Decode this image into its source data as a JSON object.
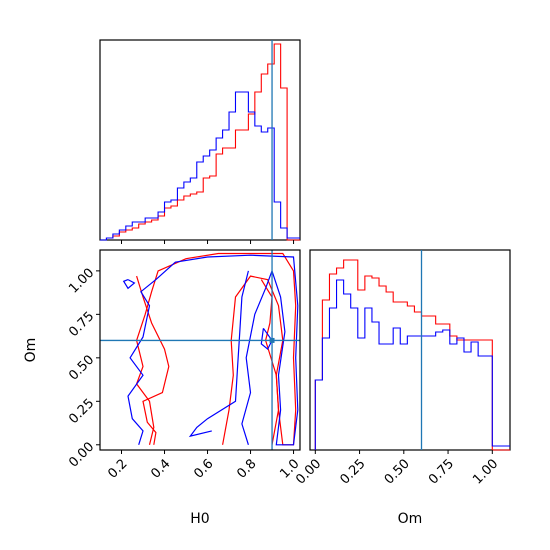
{
  "chart_data": {
    "type": "corner",
    "parameters": [
      "H0",
      "Om"
    ],
    "truths": {
      "H0": 0.9,
      "Om": 0.6
    },
    "colors": {
      "series_a": "#ff0000",
      "series_b": "#0000ff",
      "truth": "#1f77b4"
    },
    "panels": [
      {
        "id": "h0-histogram",
        "type": "histogram",
        "xlim": [
          0.1,
          1.03
        ],
        "ylim": [
          0,
          1.0
        ],
        "x_ticks": [
          0.2,
          0.4,
          0.6,
          0.8,
          1.0
        ],
        "bins": [
          0.1,
          0.13,
          0.16,
          0.19,
          0.22,
          0.25,
          0.28,
          0.31,
          0.34,
          0.37,
          0.4,
          0.43,
          0.46,
          0.49,
          0.52,
          0.55,
          0.58,
          0.61,
          0.64,
          0.67,
          0.7,
          0.73,
          0.76,
          0.79,
          0.82,
          0.85,
          0.88,
          0.91,
          0.94,
          0.97,
          1.0,
          1.03
        ],
        "series": [
          {
            "color": "red",
            "values": [
              0.0,
              0.01,
              0.02,
              0.04,
              0.05,
              0.06,
              0.08,
              0.09,
              0.1,
              0.12,
              0.16,
              0.17,
              0.2,
              0.22,
              0.23,
              0.24,
              0.31,
              0.32,
              0.43,
              0.46,
              0.46,
              0.55,
              0.55,
              0.63,
              0.74,
              0.83,
              0.88,
              0.98,
              0.76,
              0.0,
              0.0
            ]
          },
          {
            "color": "blue",
            "values": [
              0.0,
              0.01,
              0.03,
              0.05,
              0.07,
              0.09,
              0.09,
              0.11,
              0.11,
              0.14,
              0.19,
              0.2,
              0.26,
              0.29,
              0.31,
              0.39,
              0.42,
              0.45,
              0.51,
              0.55,
              0.64,
              0.74,
              0.74,
              0.64,
              0.57,
              0.54,
              0.56,
              0.19,
              0.06,
              0.01,
              0.01
            ]
          }
        ]
      },
      {
        "id": "om-histogram",
        "type": "histogram",
        "xlim": [
          -0.03,
          1.1
        ],
        "ylim": [
          0,
          1.0
        ],
        "x_ticks": [
          0.0,
          0.25,
          0.5,
          0.75,
          1.0
        ],
        "x_tick_labels": [
          "0.00",
          "0.25",
          "0.50",
          "0.75",
          "1.00"
        ],
        "xlabel": "Om",
        "bins": [
          0.0,
          0.04,
          0.08,
          0.12,
          0.16,
          0.2,
          0.24,
          0.28,
          0.32,
          0.36,
          0.4,
          0.44,
          0.48,
          0.52,
          0.56,
          0.6,
          0.64,
          0.68,
          0.72,
          0.76,
          0.8,
          0.84,
          0.88,
          0.92,
          0.96,
          1.0,
          1.04,
          1.1
        ],
        "series": [
          {
            "color": "red",
            "values": [
              0.35,
              0.75,
              0.88,
              0.91,
              0.95,
              0.95,
              0.8,
              0.87,
              0.86,
              0.82,
              0.79,
              0.74,
              0.74,
              0.72,
              0.69,
              0.67,
              0.67,
              0.63,
              0.63,
              0.57,
              0.55,
              0.55,
              0.55,
              0.55,
              0.55,
              0.0,
              0.0
            ]
          },
          {
            "color": "blue",
            "values": [
              0.35,
              0.56,
              0.71,
              0.85,
              0.78,
              0.71,
              0.56,
              0.71,
              0.64,
              0.53,
              0.53,
              0.61,
              0.53,
              0.57,
              0.57,
              0.57,
              0.57,
              0.59,
              0.6,
              0.53,
              0.56,
              0.49,
              0.54,
              0.47,
              0.47,
              0.02,
              0.02
            ]
          }
        ]
      },
      {
        "id": "h0-om-contour",
        "type": "contour",
        "xlim": [
          0.1,
          1.03
        ],
        "ylim": [
          -0.03,
          1.12
        ],
        "x_ticks": [
          0.2,
          0.4,
          0.6,
          0.8,
          1.0
        ],
        "x_tick_labels": [
          "0.2",
          "0.4",
          "0.6",
          "0.8",
          "1.0"
        ],
        "y_ticks": [
          0.0,
          0.25,
          0.5,
          0.75,
          1.0
        ],
        "y_tick_labels": [
          "0.00",
          "0.25",
          "0.50",
          "0.75",
          "1.00"
        ],
        "xlabel": "H0",
        "ylabel": "Om",
        "series": [
          {
            "color": "red",
            "level": "outer",
            "points": [
              [
                0.33,
                0.0
              ],
              [
                0.35,
                0.1
              ],
              [
                0.33,
                0.25
              ],
              [
                0.27,
                0.35
              ],
              [
                0.3,
                0.45
              ],
              [
                0.27,
                0.6
              ],
              [
                0.31,
                0.75
              ],
              [
                0.34,
                0.88
              ],
              [
                0.37,
                1.0
              ],
              [
                0.5,
                1.07
              ],
              [
                0.65,
                1.1
              ],
              [
                0.8,
                1.1
              ],
              [
                0.95,
                1.1
              ],
              [
                1.0,
                1.0
              ],
              [
                1.01,
                0.8
              ],
              [
                1.0,
                0.5
              ],
              [
                1.01,
                0.2
              ],
              [
                1.0,
                0.0
              ],
              [
                0.95,
                0.0
              ],
              [
                0.93,
                0.2
              ],
              [
                0.92,
                0.4
              ],
              [
                0.95,
                0.6
              ],
              [
                0.93,
                0.8
              ],
              [
                0.88,
                0.95
              ],
              [
                0.8,
                0.97
              ],
              [
                0.73,
                0.85
              ],
              [
                0.71,
                0.6
              ],
              [
                0.72,
                0.4
              ],
              [
                0.7,
                0.2
              ],
              [
                0.67,
                0.0
              ]
            ]
          },
          {
            "color": "red",
            "level": "inner",
            "points": [
              [
                0.27,
                0.97
              ],
              [
                0.3,
                0.85
              ],
              [
                0.34,
                0.7
              ],
              [
                0.4,
                0.55
              ],
              [
                0.42,
                0.45
              ],
              [
                0.39,
                0.3
              ],
              [
                0.3,
                0.25
              ],
              [
                0.32,
                0.13
              ],
              [
                0.36,
                0.07
              ],
              [
                0.35,
                0.0
              ]
            ]
          },
          {
            "color": "red",
            "level": "inner",
            "points": [
              [
                0.85,
                0.95
              ],
              [
                0.9,
                0.85
              ],
              [
                0.89,
                0.7
              ],
              [
                0.87,
                0.6
              ],
              [
                0.92,
                0.4
              ],
              [
                0.93,
                0.2
              ],
              [
                0.9,
                0.0
              ]
            ]
          },
          {
            "color": "blue",
            "level": "outer",
            "points": [
              [
                0.28,
                0.0
              ],
              [
                0.3,
                0.08
              ],
              [
                0.25,
                0.15
              ],
              [
                0.23,
                0.28
              ],
              [
                0.3,
                0.4
              ],
              [
                0.24,
                0.5
              ],
              [
                0.3,
                0.62
              ],
              [
                0.33,
                0.8
              ],
              [
                0.29,
                0.88
              ],
              [
                0.36,
                0.95
              ],
              [
                0.45,
                1.05
              ],
              [
                0.6,
                1.08
              ],
              [
                0.8,
                1.09
              ],
              [
                1.0,
                1.08
              ],
              [
                1.02,
                0.8
              ],
              [
                1.01,
                0.5
              ],
              [
                1.02,
                0.2
              ],
              [
                1.0,
                0.0
              ],
              [
                0.92,
                0.0
              ],
              [
                0.94,
                0.2
              ],
              [
                0.93,
                0.4
              ],
              [
                0.96,
                0.65
              ],
              [
                0.94,
                0.85
              ],
              [
                0.9,
                1.0
              ],
              [
                0.87,
                0.9
              ],
              [
                0.82,
                0.75
              ],
              [
                0.78,
                0.5
              ],
              [
                0.8,
                0.3
              ],
              [
                0.76,
                0.12
              ],
              [
                0.79,
                0.0
              ]
            ]
          },
          {
            "color": "blue",
            "level": "inner",
            "points": [
              [
                0.79,
                1.0
              ],
              [
                0.76,
                0.85
              ],
              [
                0.75,
                0.65
              ],
              [
                0.74,
                0.45
              ],
              [
                0.73,
                0.25
              ],
              [
                0.6,
                0.15
              ],
              [
                0.55,
                0.1
              ],
              [
                0.52,
                0.05
              ],
              [
                0.62,
                0.08
              ]
            ]
          },
          {
            "color": "blue",
            "level": "inner",
            "points": [
              [
                0.23,
                0.95
              ],
              [
                0.26,
                0.93
              ],
              [
                0.23,
                0.9
              ],
              [
                0.21,
                0.94
              ],
              [
                0.23,
                0.95
              ]
            ]
          },
          {
            "color": "blue",
            "level": "inner",
            "points": [
              [
                0.86,
                0.67
              ],
              [
                0.9,
                0.6
              ],
              [
                0.88,
                0.55
              ],
              [
                0.85,
                0.58
              ],
              [
                0.86,
                0.67
              ]
            ]
          }
        ]
      }
    ]
  }
}
